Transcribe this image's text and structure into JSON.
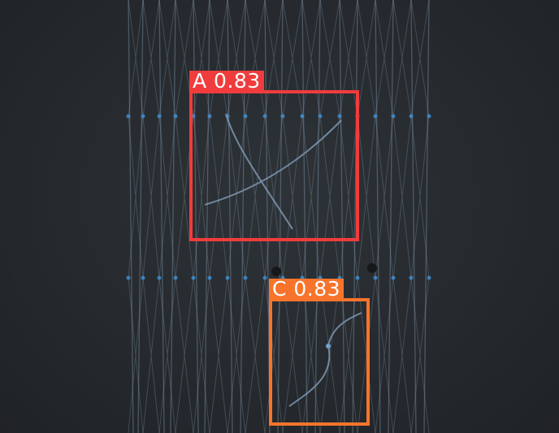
{
  "detections": [
    {
      "label": "A 0.83",
      "class": "A",
      "confidence": 0.83,
      "color": "#f03c3c"
    },
    {
      "label": "C 0.83",
      "class": "C",
      "confidence": 0.83,
      "color": "#f8742c"
    }
  ]
}
